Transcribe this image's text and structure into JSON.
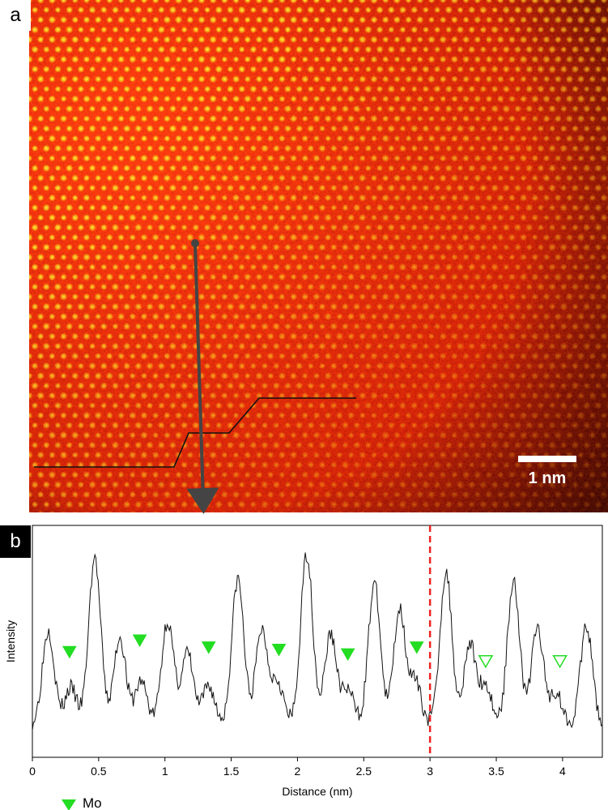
{
  "panel_a": {
    "label": "a",
    "scale_bar_label": "1 nm",
    "colors": {
      "bright": "#ffee55",
      "mid": "#ff3a10",
      "dark": "#1a0600"
    }
  },
  "panel_b": {
    "label": "b"
  },
  "chart_data": {
    "type": "line",
    "xlabel": "Distance (nm)",
    "ylabel": "Intensity",
    "xlim": [
      0,
      4.3
    ],
    "x_ticks": [
      0,
      0.5,
      1,
      1.5,
      2,
      2.5,
      3,
      3.5,
      4
    ],
    "x_tick_labels": [
      "0",
      "0.5",
      "1",
      "1.5",
      "2",
      "2.5",
      "3",
      "3.5",
      "4"
    ],
    "y_ticks_shown": false,
    "grid": false,
    "boundary_line": {
      "x": 3.0,
      "color": "#ee2222",
      "style": "dashed"
    },
    "peaks": [
      {
        "x": 0.12,
        "h": 0.55
      },
      {
        "x": 0.29,
        "h": 0.3
      },
      {
        "x": 0.47,
        "h": 0.86
      },
      {
        "x": 0.66,
        "h": 0.52
      },
      {
        "x": 0.82,
        "h": 0.33
      },
      {
        "x": 1.02,
        "h": 0.59
      },
      {
        "x": 1.17,
        "h": 0.45
      },
      {
        "x": 1.33,
        "h": 0.31
      },
      {
        "x": 1.55,
        "h": 0.77
      },
      {
        "x": 1.73,
        "h": 0.55
      },
      {
        "x": 1.85,
        "h": 0.33
      },
      {
        "x": 2.07,
        "h": 0.88
      },
      {
        "x": 2.25,
        "h": 0.53
      },
      {
        "x": 2.38,
        "h": 0.29
      },
      {
        "x": 2.58,
        "h": 0.75
      },
      {
        "x": 2.77,
        "h": 0.64
      },
      {
        "x": 2.89,
        "h": 0.32
      },
      {
        "x": 3.12,
        "h": 0.8
      },
      {
        "x": 3.3,
        "h": 0.49
      },
      {
        "x": 3.42,
        "h": 0.31
      },
      {
        "x": 3.63,
        "h": 0.77
      },
      {
        "x": 3.81,
        "h": 0.56
      },
      {
        "x": 3.95,
        "h": 0.28
      },
      {
        "x": 4.18,
        "h": 0.56
      }
    ],
    "baseline": 0.14,
    "mo_markers_filled": [
      0.28,
      0.81,
      1.33,
      1.86,
      2.38,
      2.9
    ],
    "mo_markers_open": [
      3.42,
      3.98
    ],
    "marker_color": "#22dd22",
    "legend": {
      "label": "Mo",
      "position": "bottom-left"
    }
  }
}
